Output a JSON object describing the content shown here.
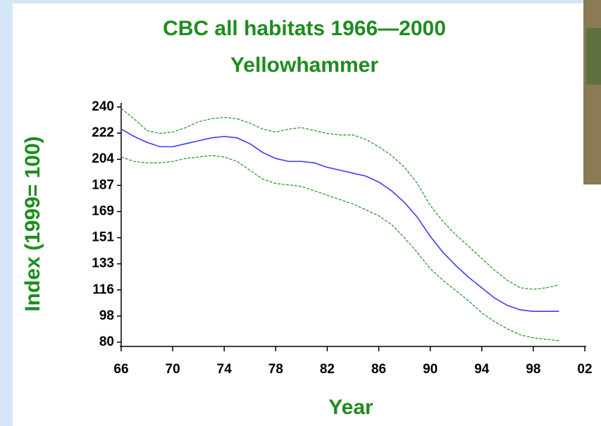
{
  "chart_data": {
    "type": "line",
    "title": "CBC all habitats 1966—2000",
    "subtitle": "Yellowhammer",
    "x_label": "Year",
    "y_label": "Index (1999= 100)",
    "x": [
      66,
      67,
      68,
      69,
      70,
      71,
      72,
      73,
      74,
      75,
      76,
      77,
      78,
      79,
      80,
      81,
      82,
      83,
      84,
      85,
      86,
      87,
      88,
      89,
      90,
      91,
      92,
      93,
      94,
      95,
      96,
      97,
      98,
      99,
      100
    ],
    "series": [
      {
        "color": "#2d9a2d",
        "dashed": true,
        "values": [
          206,
          203,
          202,
          202,
          203,
          205,
          206,
          207,
          206,
          203,
          197,
          191,
          188,
          187,
          186,
          183,
          180,
          177,
          174,
          170,
          166,
          160,
          151,
          141,
          130,
          122,
          115,
          108,
          100,
          94,
          89,
          85,
          83,
          82,
          81
        ]
      },
      {
        "color": "#3b3bff",
        "dashed": false,
        "values": [
          225,
          220,
          216,
          213,
          213,
          215,
          217,
          219,
          220,
          219,
          215,
          209,
          205,
          203,
          203,
          202,
          199,
          197,
          195,
          193,
          189,
          183,
          175,
          165,
          152,
          141,
          132,
          124,
          117,
          110,
          105,
          102,
          101,
          101,
          101
        ]
      },
      {
        "color": "#2d9a2d",
        "dashed": true,
        "values": [
          239,
          232,
          224,
          222,
          223,
          226,
          230,
          232,
          233,
          232,
          229,
          225,
          223,
          225,
          226,
          224,
          222,
          221,
          221,
          218,
          213,
          207,
          199,
          188,
          173,
          162,
          153,
          145,
          137,
          129,
          122,
          117,
          116,
          117,
          119
        ]
      }
    ],
    "xlim": [
      66,
      102
    ],
    "xticks": [
      66,
      70,
      74,
      78,
      82,
      86,
      90,
      94,
      98,
      {
        "value": 102,
        "label": "02"
      }
    ],
    "ylim": [
      80,
      240
    ],
    "yticks": [
      80,
      {
        "value": 97.78,
        "label": "98"
      },
      {
        "value": 115.56,
        "label": "116"
      },
      {
        "value": 133.33,
        "label": "133"
      },
      {
        "value": 151.11,
        "label": "151"
      },
      {
        "value": 168.89,
        "label": "169"
      },
      {
        "value": 186.67,
        "label": "187"
      },
      {
        "value": 204.44,
        "label": "204"
      },
      {
        "value": 222.22,
        "label": "222"
      },
      240
    ],
    "grid": false
  }
}
